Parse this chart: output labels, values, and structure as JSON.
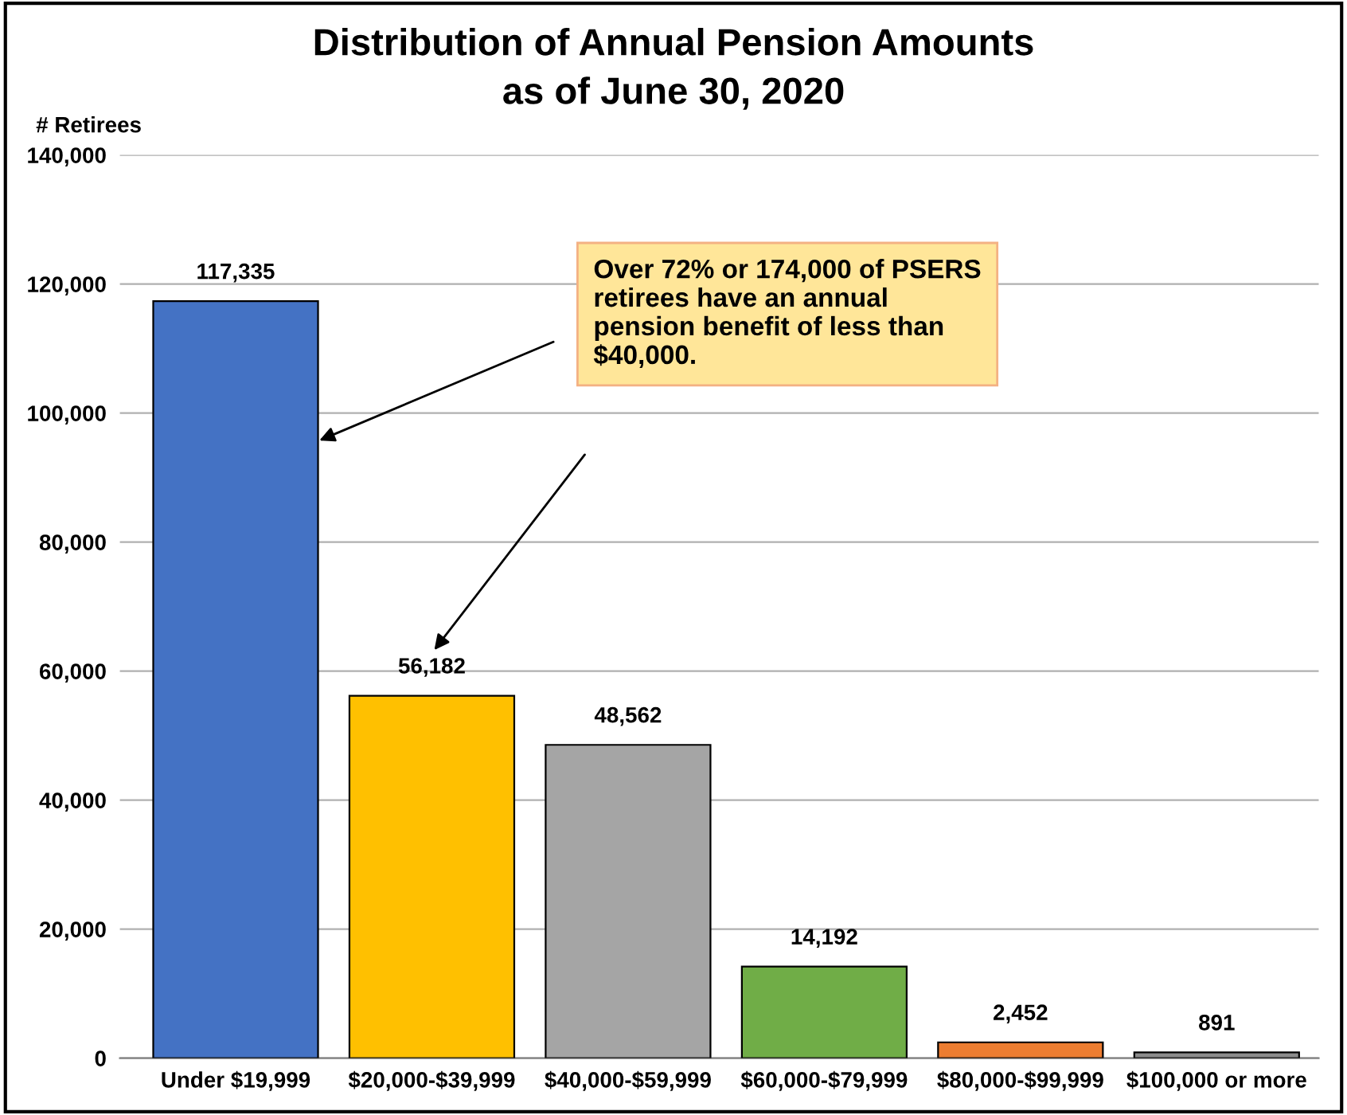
{
  "chart_data": {
    "type": "bar",
    "title": "Distribution of Annual Pension Amounts\nas of June 30, 2020",
    "ylabel": "# Retirees",
    "categories": [
      "Under $19,999",
      "$20,000-$39,999",
      "$40,000-$59,999",
      "$60,000-$79,999",
      "$80,000-$99,999",
      "$100,000 or more"
    ],
    "values": [
      117335,
      56182,
      48562,
      14192,
      2452,
      891
    ],
    "colors": [
      "#4472c4",
      "#ffc000",
      "#a5a5a5",
      "#70ad47",
      "#ed7d31",
      "#8c8c8c"
    ],
    "ylim": [
      0,
      140000
    ],
    "yticks": [
      {
        "value": 0,
        "label": "0"
      },
      {
        "value": 20000,
        "label": "20,000"
      },
      {
        "value": 40000,
        "label": "40,000"
      },
      {
        "value": 60000,
        "label": "60,000"
      },
      {
        "value": 80000,
        "label": "80,000"
      },
      {
        "value": 100000,
        "label": "100,000"
      },
      {
        "value": 120000,
        "label": "120,000"
      },
      {
        "value": 140000,
        "label": "140,000"
      }
    ],
    "value_labels": [
      "117,335",
      "56,182",
      "48,562",
      "14,192",
      "2,452",
      "891"
    ],
    "annotations": [
      "Over 72% or 174,000 of PSERS\nretirees have an annual\npension benefit of less than\n$40,000."
    ],
    "grid": "y",
    "legend": false
  }
}
